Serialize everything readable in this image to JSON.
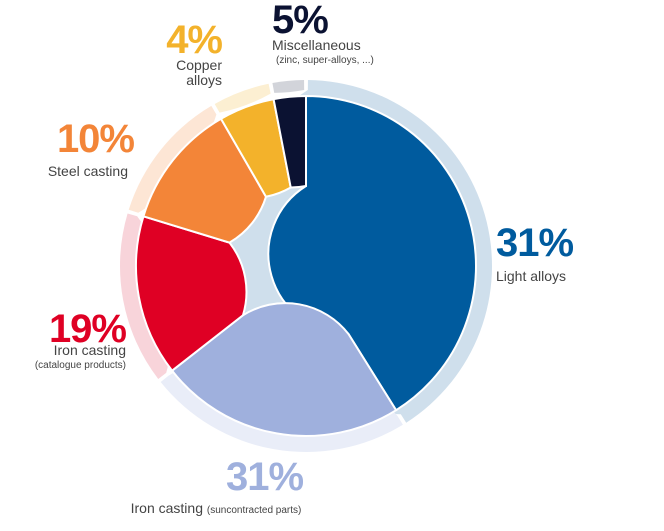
{
  "chart_data": {
    "type": "pie",
    "style": "donut",
    "title": "",
    "series": [
      {
        "name": "Light alloys",
        "value": 31,
        "label": "31%",
        "color": "#005b9e",
        "ring_color": "#cfdfec",
        "caption": [
          "Light alloys"
        ],
        "subcaption": ""
      },
      {
        "name": "Iron casting (suncontracted parts)",
        "value": 31,
        "label": "31%",
        "color": "#9fb0dd",
        "ring_color": "#e9edf8",
        "caption": [
          "Iron casting"
        ],
        "subcaption": "(suncontracted parts)"
      },
      {
        "name": "Iron casting (catalogue products)",
        "value": 19,
        "label": "19%",
        "color": "#df0024",
        "ring_color": "#f8d4da",
        "caption": [
          "Iron casting"
        ],
        "subcaption": "(catalogue products)"
      },
      {
        "name": "Steel casting",
        "value": 10,
        "label": "10%",
        "color": "#f38538",
        "ring_color": "#fde6d5",
        "caption": [
          "Steel casting"
        ],
        "subcaption": ""
      },
      {
        "name": "Copper alloys",
        "value": 4,
        "label": "4%",
        "color": "#f3b22b",
        "ring_color": "#fcefd2",
        "caption": [
          "Copper",
          "alloys"
        ],
        "subcaption": ""
      },
      {
        "name": "Miscellaneous (zinc, super-alloys, ...)",
        "value": 5,
        "label": "5%",
        "color": "#0b1232",
        "ring_color": "#d2d4da",
        "caption": [
          "Miscellaneous"
        ],
        "subcaption": "(zinc, super-alloys, ...)"
      }
    ]
  }
}
